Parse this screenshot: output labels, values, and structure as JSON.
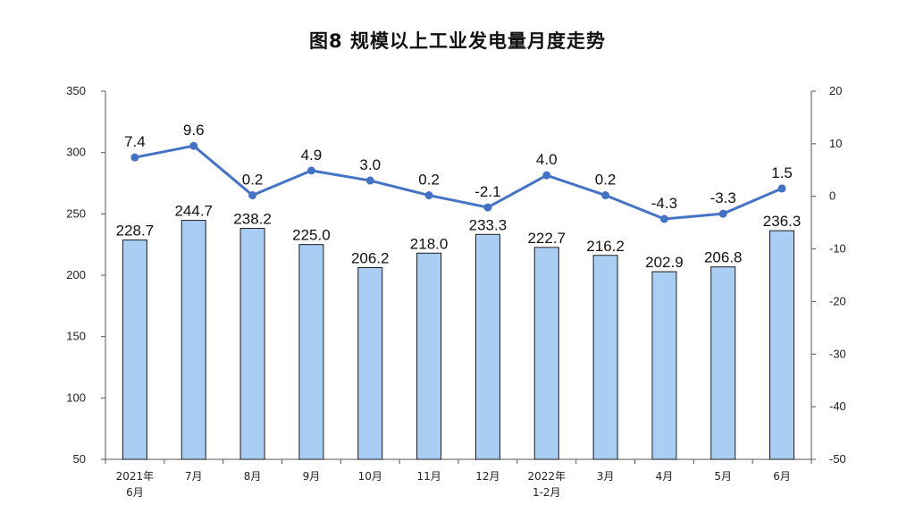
{
  "chart_data": {
    "title": "图8  规模以上工业发电量月度走势",
    "type": "bar+line",
    "categories": [
      "2021年6月",
      "7月",
      "8月",
      "9月",
      "10月",
      "11月",
      "12月",
      "2022年1-2月",
      "3月",
      "4月",
      "5月",
      "6月"
    ],
    "category_lines": [
      [
        "2021年",
        "6月"
      ],
      [
        "7月"
      ],
      [
        "8月"
      ],
      [
        "9月"
      ],
      [
        "10月"
      ],
      [
        "11月"
      ],
      [
        "12月"
      ],
      [
        "2022年",
        "1-2月"
      ],
      [
        "3月"
      ],
      [
        "4月"
      ],
      [
        "5月"
      ],
      [
        "6月"
      ]
    ],
    "series": [
      {
        "type": "bar",
        "axis": "left",
        "color": "#a9cdf3",
        "stroke": "#1c1c1c",
        "values": [
          228.7,
          244.7,
          238.2,
          225.0,
          206.2,
          218.0,
          233.3,
          222.7,
          216.2,
          202.9,
          206.8,
          236.3
        ],
        "labels": [
          "228.7",
          "244.7",
          "238.2",
          "225.0",
          "206.2",
          "218.0",
          "233.3",
          "222.7",
          "216.2",
          "202.9",
          "206.8",
          "236.3"
        ]
      },
      {
        "type": "line",
        "axis": "right",
        "color": "#4472c4",
        "values": [
          7.4,
          9.6,
          0.2,
          4.9,
          3.0,
          0.2,
          -2.1,
          4.0,
          0.2,
          -4.3,
          -3.3,
          1.5
        ],
        "labels": [
          "7.4",
          "9.6",
          "0.2",
          "4.9",
          "3.0",
          "0.2",
          "-2.1",
          "4.0",
          "0.2",
          "-4.3",
          "-3.3",
          "1.5"
        ]
      }
    ],
    "y_left": {
      "ylim": [
        50,
        350
      ],
      "ticks": [
        50,
        100,
        150,
        200,
        250,
        300,
        350
      ]
    },
    "y_right": {
      "ylim": [
        -50,
        20
      ],
      "ticks": [
        -50,
        -40,
        -30,
        -20,
        -10,
        0,
        10,
        20
      ]
    },
    "grid": false,
    "legend": "none"
  }
}
